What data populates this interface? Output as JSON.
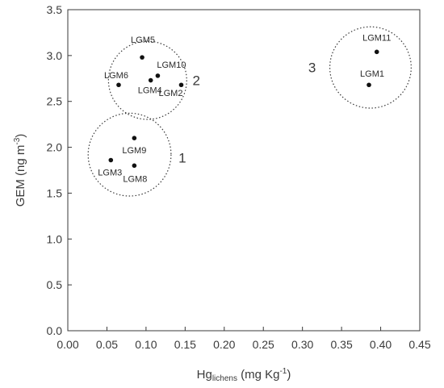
{
  "chart_data": {
    "type": "scatter",
    "xlabel": {
      "main": "Hg",
      "sub": "lichens",
      "unit_pre": " (mg Kg",
      "unit_sup": "-1",
      "unit_post": ")"
    },
    "ylabel": {
      "pre": "GEM (ng m",
      "sup": "-3",
      "post": ")"
    },
    "xlim": [
      0.0,
      0.45
    ],
    "ylim": [
      0.0,
      3.5
    ],
    "x_ticks": [
      "0.00",
      "0.05",
      "0.10",
      "0.15",
      "0.20",
      "0.25",
      "0.30",
      "0.35",
      "0.40",
      "0.45"
    ],
    "y_ticks": [
      "0.0",
      "0.5",
      "1.0",
      "1.5",
      "2.0",
      "2.5",
      "3.0",
      "3.5"
    ],
    "grid": false,
    "points": [
      {
        "label": "LGM5",
        "x": 0.095,
        "y": 2.98
      },
      {
        "label": "LGM10",
        "x": 0.115,
        "y": 2.78
      },
      {
        "label": "LGM4",
        "x": 0.106,
        "y": 2.73
      },
      {
        "label": "LGM6",
        "x": 0.065,
        "y": 2.68
      },
      {
        "label": "LGM2",
        "x": 0.145,
        "y": 2.68
      },
      {
        "label": "LGM9",
        "x": 0.085,
        "y": 2.1
      },
      {
        "label": "LGM3",
        "x": 0.055,
        "y": 1.86
      },
      {
        "label": "LGM8",
        "x": 0.085,
        "y": 1.8
      },
      {
        "label": "LGM11",
        "x": 0.395,
        "y": 3.04
      },
      {
        "label": "LGM1",
        "x": 0.385,
        "y": 2.68
      }
    ],
    "clusters": [
      {
        "label": "1",
        "cx": 0.079,
        "cy": 1.92,
        "r": 0.0265
      },
      {
        "label": "2",
        "cx": 0.102,
        "cy": 2.73,
        "r": 0.025
      },
      {
        "label": "3",
        "cx": 0.387,
        "cy": 2.87,
        "r": 0.026
      }
    ]
  }
}
